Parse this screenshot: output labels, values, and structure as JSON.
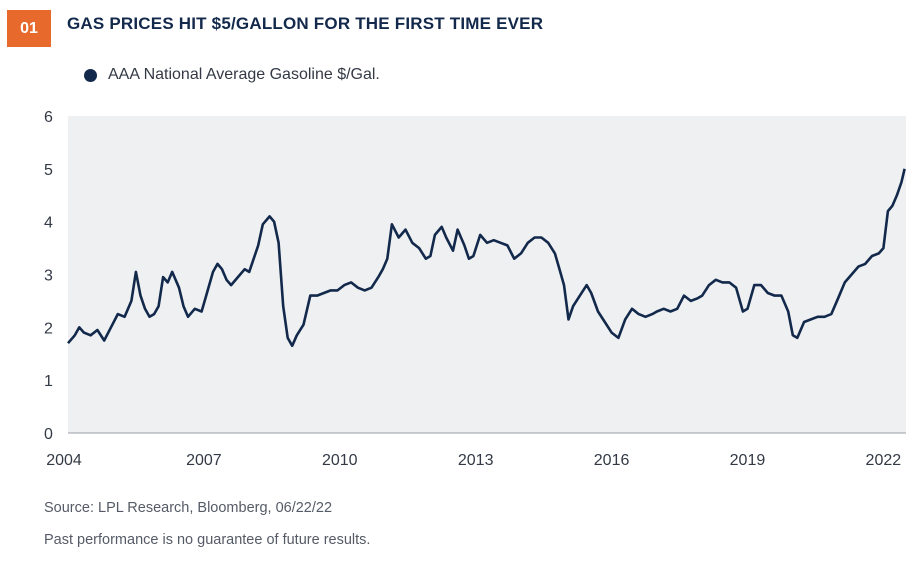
{
  "header": {
    "number": "01",
    "title": "GAS PRICES HIT $5/GALLON FOR THE FIRST TIME EVER"
  },
  "footer": {
    "source": "Source: LPL Research, Bloomberg,  06/22/22",
    "disclaimer": "Past performance is no guarantee of future results."
  },
  "colors": {
    "line": "#13294b",
    "plot_bg": "#eef0f2",
    "badge": "#e8692c"
  },
  "chart_data": {
    "type": "line",
    "title": "GAS PRICES HIT $5/GALLON FOR THE FIRST TIME EVER",
    "legend": "top-left",
    "xlabel": "",
    "ylabel": "",
    "xlim": [
      2004.0,
      2022.5
    ],
    "ylim": [
      0,
      6
    ],
    "x_ticks": [
      "2004",
      "2007",
      "2010",
      "2013",
      "2016",
      "2019",
      "2022"
    ],
    "y_ticks": [
      "0",
      "1",
      "2",
      "3",
      "4",
      "5",
      "6"
    ],
    "series": [
      {
        "name": "AAA National Average Gasoline $/Gal.",
        "x": [
          2004.0,
          2004.15,
          2004.25,
          2004.35,
          2004.5,
          2004.65,
          2004.8,
          2004.95,
          2005.1,
          2005.25,
          2005.4,
          2005.5,
          2005.6,
          2005.7,
          2005.8,
          2005.9,
          2006.0,
          2006.1,
          2006.2,
          2006.3,
          2006.45,
          2006.55,
          2006.65,
          2006.8,
          2006.95,
          2007.05,
          2007.2,
          2007.3,
          2007.4,
          2007.5,
          2007.6,
          2007.75,
          2007.9,
          2008.0,
          2008.1,
          2008.2,
          2008.3,
          2008.45,
          2008.55,
          2008.65,
          2008.75,
          2008.85,
          2008.95,
          2009.05,
          2009.2,
          2009.35,
          2009.5,
          2009.65,
          2009.8,
          2009.95,
          2010.1,
          2010.25,
          2010.4,
          2010.55,
          2010.7,
          2010.85,
          2010.95,
          2011.05,
          2011.15,
          2011.3,
          2011.45,
          2011.6,
          2011.75,
          2011.9,
          2012.0,
          2012.1,
          2012.25,
          2012.35,
          2012.5,
          2012.6,
          2012.75,
          2012.85,
          2012.95,
          2013.1,
          2013.25,
          2013.4,
          2013.55,
          2013.7,
          2013.85,
          2014.0,
          2014.15,
          2014.3,
          2014.45,
          2014.6,
          2014.75,
          2014.85,
          2014.95,
          2015.05,
          2015.15,
          2015.3,
          2015.45,
          2015.55,
          2015.7,
          2015.85,
          2016.0,
          2016.15,
          2016.3,
          2016.45,
          2016.6,
          2016.75,
          2016.9,
          2017.0,
          2017.15,
          2017.3,
          2017.45,
          2017.6,
          2017.75,
          2017.9,
          2018.0,
          2018.15,
          2018.3,
          2018.45,
          2018.6,
          2018.75,
          2018.9,
          2019.0,
          2019.15,
          2019.3,
          2019.45,
          2019.6,
          2019.75,
          2019.9,
          2020.0,
          2020.1,
          2020.25,
          2020.4,
          2020.55,
          2020.7,
          2020.85,
          2021.0,
          2021.15,
          2021.3,
          2021.45,
          2021.6,
          2021.75,
          2021.9,
          2022.0,
          2022.1,
          2022.2,
          2022.3,
          2022.4,
          2022.47
        ],
        "values": [
          1.7,
          1.85,
          2.0,
          1.9,
          1.85,
          1.95,
          1.75,
          2.0,
          2.25,
          2.2,
          2.5,
          3.05,
          2.6,
          2.35,
          2.2,
          2.25,
          2.4,
          2.95,
          2.85,
          3.05,
          2.75,
          2.4,
          2.2,
          2.35,
          2.3,
          2.6,
          3.05,
          3.2,
          3.1,
          2.9,
          2.8,
          2.95,
          3.1,
          3.05,
          3.3,
          3.55,
          3.95,
          4.1,
          4.0,
          3.6,
          2.4,
          1.8,
          1.65,
          1.85,
          2.05,
          2.6,
          2.6,
          2.65,
          2.7,
          2.7,
          2.8,
          2.85,
          2.75,
          2.7,
          2.75,
          2.95,
          3.1,
          3.3,
          3.95,
          3.7,
          3.85,
          3.6,
          3.5,
          3.3,
          3.35,
          3.75,
          3.9,
          3.7,
          3.45,
          3.85,
          3.55,
          3.3,
          3.35,
          3.75,
          3.6,
          3.65,
          3.6,
          3.55,
          3.3,
          3.4,
          3.6,
          3.7,
          3.7,
          3.6,
          3.4,
          3.1,
          2.8,
          2.15,
          2.4,
          2.6,
          2.8,
          2.65,
          2.3,
          2.1,
          1.9,
          1.8,
          2.15,
          2.35,
          2.25,
          2.2,
          2.25,
          2.3,
          2.35,
          2.3,
          2.35,
          2.6,
          2.5,
          2.55,
          2.6,
          2.8,
          2.9,
          2.85,
          2.85,
          2.75,
          2.3,
          2.35,
          2.8,
          2.8,
          2.65,
          2.6,
          2.6,
          2.3,
          1.85,
          1.8,
          2.1,
          2.15,
          2.2,
          2.2,
          2.25,
          2.55,
          2.85,
          3.0,
          3.15,
          3.2,
          3.35,
          3.4,
          3.5,
          4.2,
          4.3,
          4.5,
          4.75,
          5.0
        ]
      }
    ]
  }
}
